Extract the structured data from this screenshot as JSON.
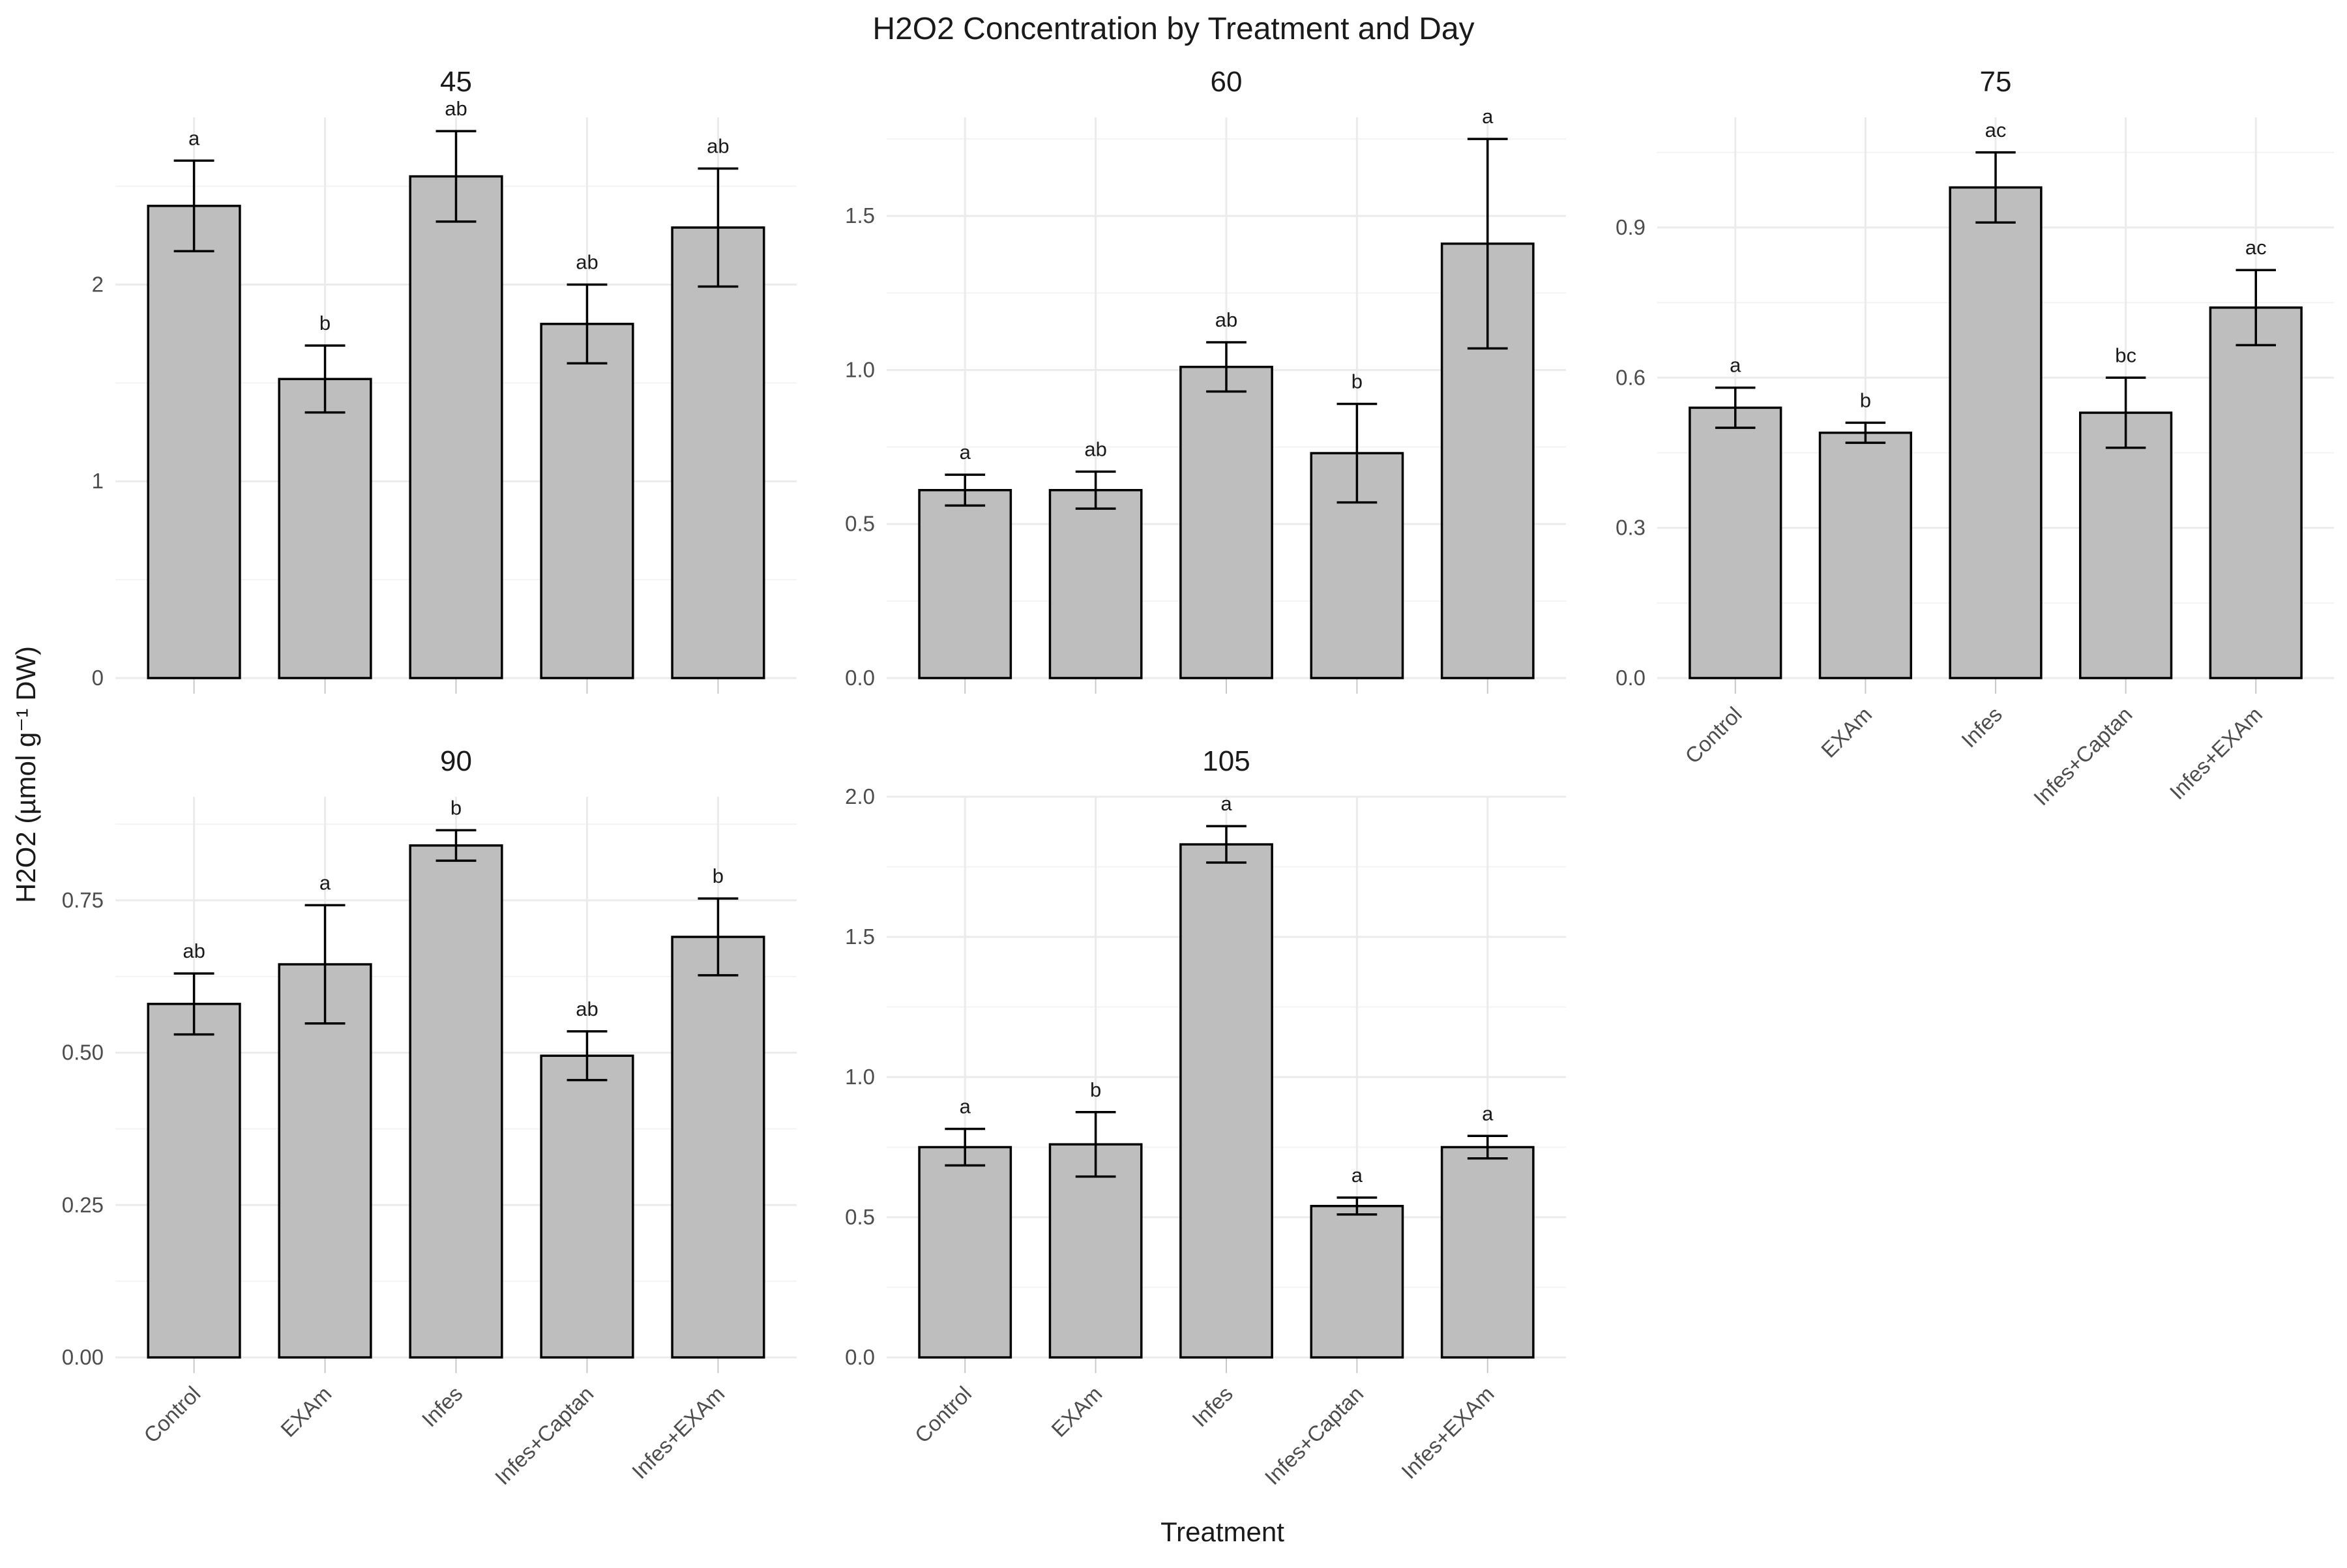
{
  "chart_data": {
    "type": "bar",
    "title": "H2O2 Concentration by Treatment and Day",
    "xlabel": "Treatment",
    "ylabel": "H2O2 (µmol g⁻¹ DW)",
    "categories": [
      "Control",
      "EXAm",
      "Infes",
      "Infes+Captan",
      "Infes+EXAm"
    ],
    "bar_color": "#bebebe",
    "panels": [
      {
        "label": "45",
        "ylim": [
          0,
          2.85
        ],
        "yticks": [
          0,
          1,
          2
        ],
        "ytick_labels": [
          "0",
          "1",
          "2"
        ],
        "values": [
          2.4,
          1.52,
          2.55,
          1.8,
          2.29
        ],
        "errors": [
          0.23,
          0.17,
          0.23,
          0.2,
          0.3
        ],
        "letters": [
          "a",
          "b",
          "ab",
          "ab",
          "ab"
        ]
      },
      {
        "label": "60",
        "ylim": [
          0,
          1.82
        ],
        "yticks": [
          0,
          0.5,
          1.0,
          1.5
        ],
        "ytick_labels": [
          "0.0",
          "0.5",
          "1.0",
          "1.5"
        ],
        "values": [
          0.61,
          0.61,
          1.01,
          0.73,
          1.41
        ],
        "errors": [
          0.05,
          0.06,
          0.08,
          0.16,
          0.34
        ],
        "letters": [
          "a",
          "ab",
          "ab",
          "b",
          "a"
        ]
      },
      {
        "label": "75",
        "ylim": [
          0,
          1.12
        ],
        "yticks": [
          0,
          0.3,
          0.6,
          0.9
        ],
        "ytick_labels": [
          "0.0",
          "0.3",
          "0.6",
          "0.9"
        ],
        "values": [
          0.54,
          0.49,
          0.98,
          0.53,
          0.74
        ],
        "errors": [
          0.04,
          0.02,
          0.07,
          0.07,
          0.075
        ],
        "letters": [
          "a",
          "b",
          "ac",
          "bc",
          "ac"
        ]
      },
      {
        "label": "90",
        "ylim": [
          0,
          0.92
        ],
        "yticks": [
          0,
          0.25,
          0.5,
          0.75
        ],
        "ytick_labels": [
          "0.00",
          "0.25",
          "0.50",
          "0.75"
        ],
        "values": [
          0.58,
          0.645,
          0.84,
          0.495,
          0.69
        ],
        "errors": [
          0.05,
          0.097,
          0.025,
          0.04,
          0.063
        ],
        "letters": [
          "ab",
          "a",
          "b",
          "ab",
          "b"
        ]
      },
      {
        "label": "105",
        "ylim": [
          0,
          2.0
        ],
        "yticks": [
          0,
          0.5,
          1.0,
          1.5,
          2.0
        ],
        "ytick_labels": [
          "0.0",
          "0.5",
          "1.0",
          "1.5",
          "2.0"
        ],
        "values": [
          0.75,
          0.76,
          1.83,
          0.54,
          0.75
        ],
        "errors": [
          0.065,
          0.115,
          0.065,
          0.03,
          0.04
        ],
        "letters": [
          "a",
          "b",
          "a",
          "a",
          "a"
        ]
      }
    ]
  }
}
